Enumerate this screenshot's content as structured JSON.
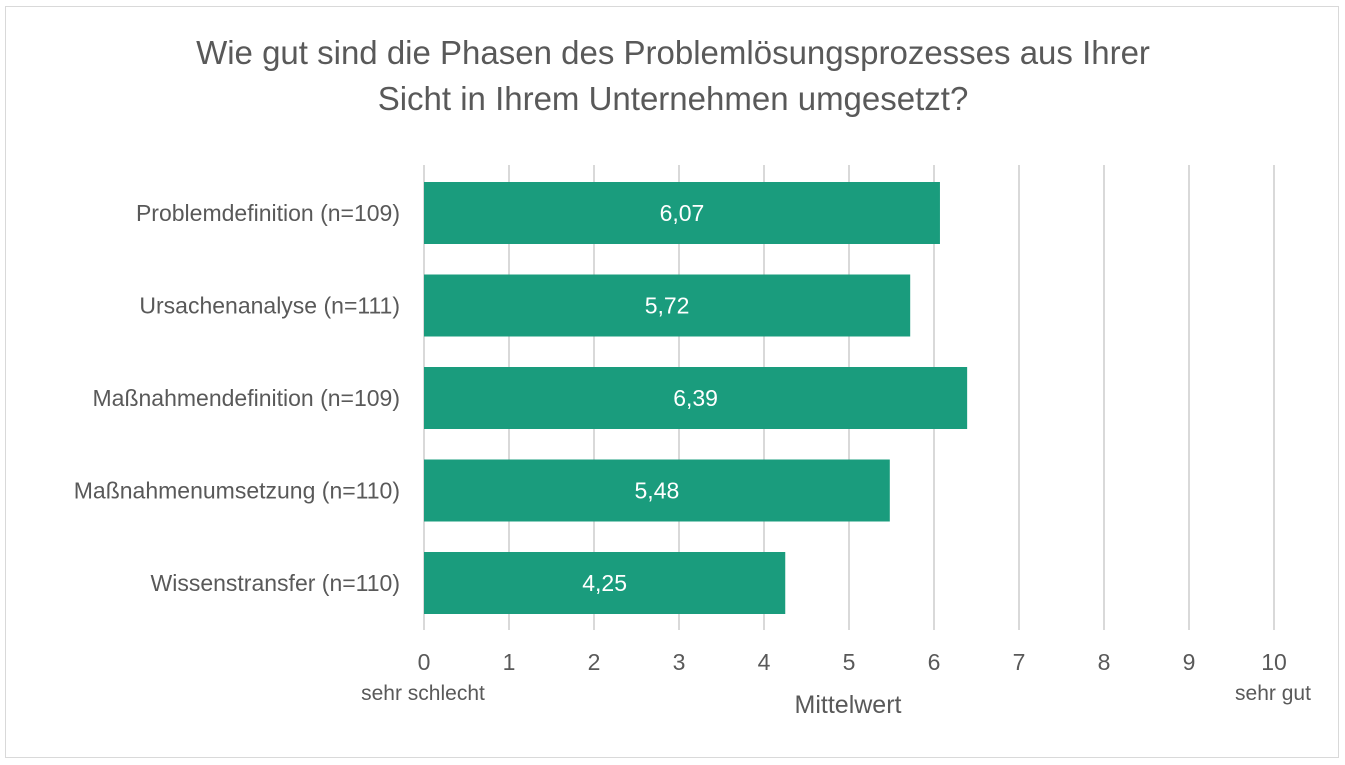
{
  "chart_data": {
    "type": "bar",
    "orientation": "horizontal",
    "title_lines": [
      "Wie gut sind die Phasen des Problemlösungsprozesses aus Ihrer",
      "Sicht in Ihrem Unternehmen umgesetzt?"
    ],
    "categories": [
      "Problemdefinition (n=109)",
      "Ursachenanalyse (n=111)",
      "Maßnahmendefinition (n=109)",
      "Maßnahmenumsetzung (n=110)",
      "Wissenstransfer (n=110)"
    ],
    "values": [
      6.07,
      5.72,
      6.39,
      5.48,
      4.25
    ],
    "value_labels": [
      "6,07",
      "5,72",
      "6,39",
      "5,48",
      "4,25"
    ],
    "xlim": [
      0,
      10
    ],
    "xticks": [
      "0",
      "1",
      "2",
      "3",
      "4",
      "5",
      "6",
      "7",
      "8",
      "9",
      "10"
    ],
    "xlabel": "Mittelwert",
    "x_min_label": "sehr schlecht",
    "x_max_label": "sehr gut",
    "grid": true,
    "bar_color": "#1a9c7d",
    "grid_color": "#d9d9d9"
  }
}
